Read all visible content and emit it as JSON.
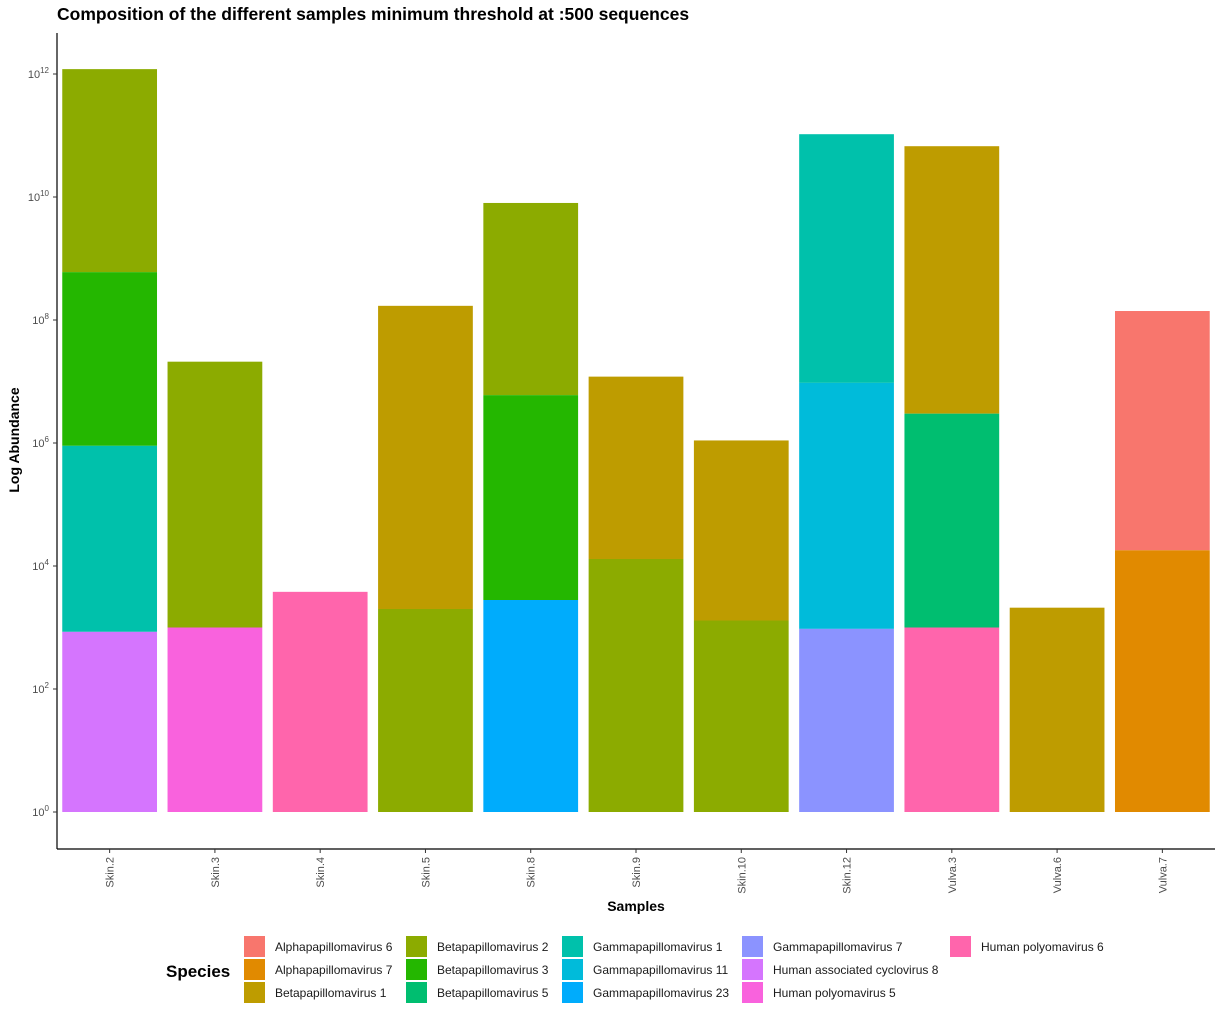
{
  "chart_data": {
    "type": "bar",
    "stacked": true,
    "title": "Composition of the different samples minimum threshold at :500 sequences",
    "xlabel": "Samples",
    "ylabel": "Log Abundance",
    "y_scale": "log10",
    "ylim": [
      0.1,
      3000000000000.0
    ],
    "yticks": [
      {
        "value": 1,
        "base": "10",
        "exp": "0"
      },
      {
        "value": 100,
        "base": "10",
        "exp": "2"
      },
      {
        "value": 10000,
        "base": "10",
        "exp": "4"
      },
      {
        "value": 1000000,
        "base": "10",
        "exp": "6"
      },
      {
        "value": 100000000,
        "base": "10",
        "exp": "8"
      },
      {
        "value": 10000000000,
        "base": "10",
        "exp": "10"
      },
      {
        "value": 1000000000000,
        "base": "10",
        "exp": "12"
      }
    ],
    "grid": false,
    "legend_title": "Species",
    "legend_position": "bottom",
    "categories": [
      "Skin.2",
      "Skin.3",
      "Skin.4",
      "Skin.5",
      "Skin.8",
      "Skin.9",
      "Skin.10",
      "Skin.12",
      "Vulva.3",
      "Vulva.6",
      "Vulva.7"
    ],
    "series": [
      {
        "name": "Alphapapillomavirus 6",
        "color": "#F8766D",
        "segments": [
          {
            "category": "Vulva.7",
            "bottom": 18000,
            "top": 140000000
          }
        ]
      },
      {
        "name": "Alphapapillomavirus 7",
        "color": "#E18A00",
        "segments": [
          {
            "category": "Vulva.7",
            "bottom": 1,
            "top": 18000
          }
        ]
      },
      {
        "name": "Betapapillomavirus 1",
        "color": "#BE9C00",
        "segments": [
          {
            "category": "Skin.5",
            "bottom": 2000,
            "top": 170000000
          },
          {
            "category": "Skin.9",
            "bottom": 13000,
            "top": 12000000
          },
          {
            "category": "Skin.10",
            "bottom": 1300,
            "top": 1100000
          },
          {
            "category": "Vulva.3",
            "bottom": 3000000,
            "top": 67000000000
          },
          {
            "category": "Vulva.6",
            "bottom": 1,
            "top": 2100
          }
        ]
      },
      {
        "name": "Betapapillomavirus 2",
        "color": "#8CAB00",
        "segments": [
          {
            "category": "Skin.2",
            "bottom": 600000000,
            "top": 1200000000000
          },
          {
            "category": "Skin.3",
            "bottom": 1000,
            "top": 21000000
          },
          {
            "category": "Skin.5",
            "bottom": 1,
            "top": 2000
          },
          {
            "category": "Skin.8",
            "bottom": 6000000,
            "top": 8000000000
          },
          {
            "category": "Skin.9",
            "bottom": 1,
            "top": 13000
          },
          {
            "category": "Skin.10",
            "bottom": 1,
            "top": 1300
          }
        ]
      },
      {
        "name": "Betapapillomavirus 3",
        "color": "#24B700",
        "segments": [
          {
            "category": "Skin.2",
            "bottom": 900000,
            "top": 600000000
          },
          {
            "category": "Skin.8",
            "bottom": 2800,
            "top": 6000000
          }
        ]
      },
      {
        "name": "Betapapillomavirus 5",
        "color": "#00BE70",
        "segments": [
          {
            "category": "Vulva.3",
            "bottom": 1000,
            "top": 3000000
          }
        ]
      },
      {
        "name": "Gammapapillomavirus 1",
        "color": "#00C1AB",
        "segments": [
          {
            "category": "Skin.2",
            "bottom": 850,
            "top": 900000
          },
          {
            "category": "Skin.12",
            "bottom": 9500000,
            "top": 105000000000
          }
        ]
      },
      {
        "name": "Gammapapillomavirus 11",
        "color": "#00BBDA",
        "segments": [
          {
            "category": "Skin.12",
            "bottom": 950,
            "top": 9500000
          }
        ]
      },
      {
        "name": "Gammapapillomavirus 23",
        "color": "#00ACFC",
        "segments": [
          {
            "category": "Skin.8",
            "bottom": 1,
            "top": 2800
          }
        ]
      },
      {
        "name": "Gammapapillomavirus 7",
        "color": "#8B93FF",
        "segments": [
          {
            "category": "Skin.12",
            "bottom": 1,
            "top": 950
          }
        ]
      },
      {
        "name": "Human associated cyclovirus 8",
        "color": "#D575FE",
        "segments": [
          {
            "category": "Skin.2",
            "bottom": 1,
            "top": 850
          }
        ]
      },
      {
        "name": "Human polyomavirus 5",
        "color": "#F962DD",
        "segments": [
          {
            "category": "Skin.3",
            "bottom": 1,
            "top": 1000
          }
        ]
      },
      {
        "name": "Human polyomavirus 6",
        "color": "#FF65AC",
        "segments": [
          {
            "category": "Skin.4",
            "bottom": 1,
            "top": 3800
          },
          {
            "category": "Vulva.3",
            "bottom": 1,
            "top": 1000
          }
        ]
      }
    ]
  }
}
